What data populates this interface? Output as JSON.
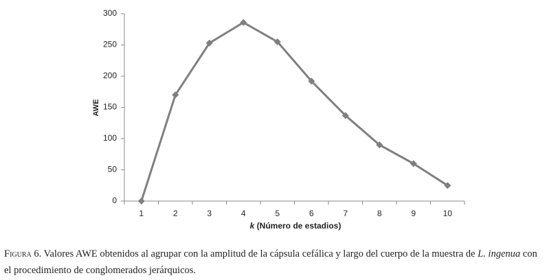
{
  "chart_data": {
    "type": "line",
    "y_label": "AWE",
    "x_label_var": "k",
    "x_label": "(Número de estadios)",
    "categories": [
      "1",
      "2",
      "3",
      "4",
      "5",
      "6",
      "7",
      "8",
      "9",
      "10"
    ],
    "values": [
      0,
      170,
      253,
      286,
      255,
      192,
      137,
      90,
      60,
      25
    ],
    "color": "#7f7f7f",
    "ylim": [
      0,
      300
    ],
    "yticks": [
      0,
      50,
      100,
      150,
      200,
      250,
      300
    ],
    "grid": false
  },
  "caption": {
    "label": "Figura 6.",
    "text_1": "Valores AWE obtenidos al agrupar con la amplitud de la cápsula cefálica y largo del cuerpo de la muestra de",
    "species": "L. ingenua",
    "text_2": "con",
    "text_3": "el procedimiento de conglomerados jerárquicos."
  }
}
